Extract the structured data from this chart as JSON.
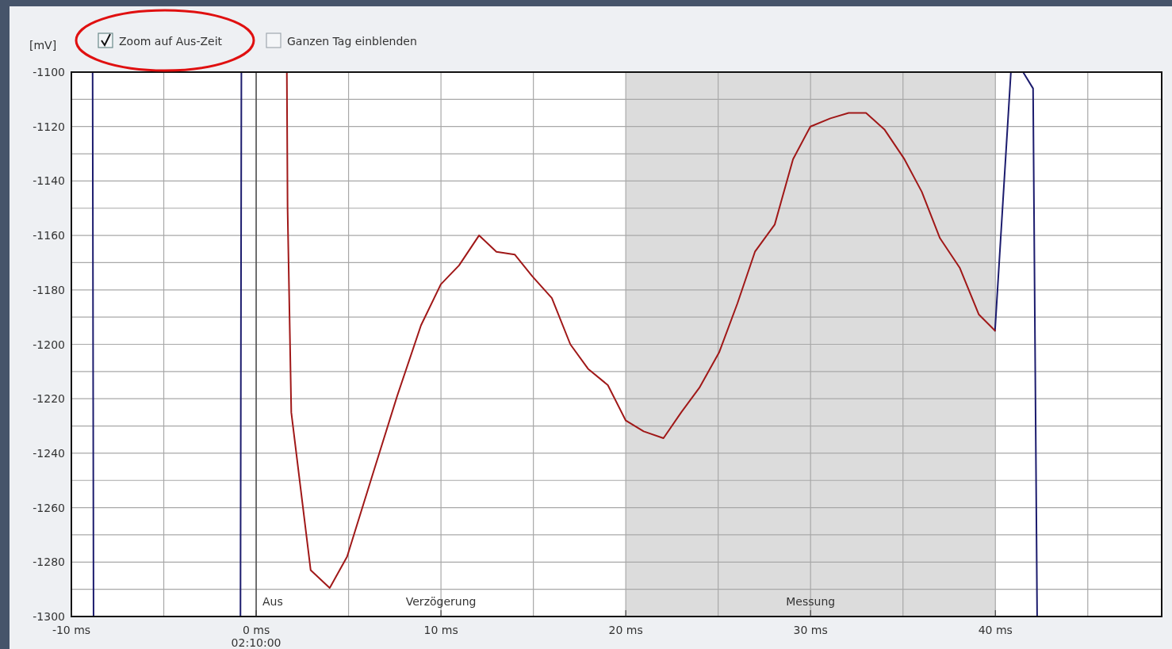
{
  "chart_data": {
    "type": "line",
    "ylabel": "[mV]",
    "annotations": [
      "Zoom auf Aus-Zeit",
      "Ganzen Tag einblenden",
      "Verzögerung"
    ],
    "xlim": [
      -10,
      49
    ],
    "ylim": [
      -1300,
      -1100
    ],
    "xticks": [
      {
        "value": -10,
        "label": "-10 ms"
      },
      {
        "value": -5,
        "label": null
      },
      {
        "value": 0,
        "label": "0 ms\n02:10:00"
      },
      {
        "value": 5,
        "label": null
      },
      {
        "value": 10,
        "label": "10 ms"
      },
      {
        "value": 15,
        "label": null
      },
      {
        "value": 20,
        "label": "20 ms"
      },
      {
        "value": 25,
        "label": null
      },
      {
        "value": 30,
        "label": "30 ms"
      },
      {
        "value": 35,
        "label": null
      },
      {
        "value": 40,
        "label": "40 ms"
      },
      {
        "value": 45,
        "label": null
      }
    ],
    "yticks": [
      -1300,
      {
        "value": -1290,
        "label": null
      },
      -1280,
      {
        "value": -1270,
        "label": null
      },
      -1260,
      {
        "value": -1250,
        "label": null
      },
      -1240,
      {
        "value": -1230,
        "label": null
      },
      -1220,
      {
        "value": -1210,
        "label": null
      },
      -1200,
      {
        "value": -1190,
        "label": null
      },
      -1180,
      {
        "value": -1170,
        "label": null
      },
      -1160,
      {
        "value": -1150,
        "label": null
      },
      -1140,
      {
        "value": -1130,
        "label": null
      },
      -1120,
      {
        "value": -1110,
        "label": null
      },
      -1100
    ],
    "grid": true,
    "marker": "none",
    "line_style": "solid",
    "bands": [
      {
        "axis": "x",
        "from": 20,
        "to": 40,
        "label": "Messung",
        "color": "#dcdcdc"
      }
    ],
    "ref_lines": [
      {
        "axis": "x",
        "value": 0,
        "label": "Aus",
        "color": "#333333"
      }
    ],
    "series": [
      {
        "color": "#1c1c6e",
        "x": [
          -8.85,
          -8.8
        ],
        "values": [
          -1100,
          -1300
        ]
      },
      {
        "color": "#1c1c6e",
        "x": [
          -0.85,
          -0.8
        ],
        "values": [
          -1300,
          -1100
        ]
      },
      {
        "color": "#1c1c6e",
        "x": [
          39.98,
          40.84,
          41.5,
          42.04,
          42.26
        ],
        "values": [
          -1195,
          -1100,
          -1100,
          -1106,
          -1300
        ]
      },
      {
        "color": "#a01818",
        "x": [
          1.66,
          1.7,
          1.9,
          2.95,
          3.98,
          4.92,
          6.34,
          7.63,
          8.92,
          9.99,
          10.98,
          12.06,
          13.0,
          13.99,
          14.94,
          16.0,
          17.0,
          17.96,
          19.03,
          20.0,
          20.97,
          22.04,
          23.0,
          23.98,
          25.05,
          26.04,
          26.99,
          28.06,
          29.05,
          29.99,
          31.07,
          32.06,
          33.0,
          33.99,
          35.08,
          36.02,
          37.0,
          38.08,
          39.1,
          39.98
        ],
        "values": [
          -1100,
          -1150,
          -1225,
          -1283,
          -1289.5,
          -1278,
          -1247,
          -1219,
          -1193,
          -1178,
          -1171,
          -1160,
          -1166,
          -1167,
          -1175,
          -1183,
          -1200,
          -1209,
          -1215,
          -1228,
          -1232,
          -1234.5,
          -1225,
          -1216,
          -1203,
          -1185,
          -1166,
          -1156,
          -1132,
          -1120,
          -1117,
          -1115,
          -1115,
          -1121,
          -1132,
          -1144,
          -1161,
          -1172,
          -1189,
          -1195
        ]
      }
    ]
  }
}
